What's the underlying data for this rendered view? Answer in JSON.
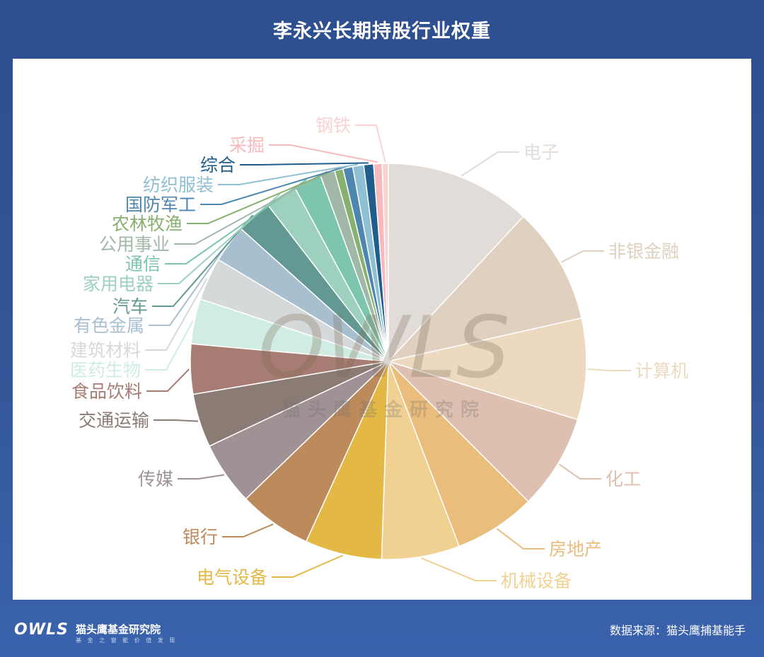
{
  "title": "李永兴长期持股行业权重",
  "source": "数据来源：猫头鹰捕基能手",
  "watermark": {
    "logo": "OWLS",
    "name": "猫头鹰基金研究院"
  },
  "footer": {
    "logo": "OWLS",
    "name": "猫头鹰基金研究院",
    "slogan": "基 金 之 窗 能 价 值 发 现"
  },
  "chart_data": {
    "type": "pie",
    "slices": [
      {
        "label": "电子",
        "value": 12.0,
        "color": "#e2dcd8"
      },
      {
        "label": "非银金融",
        "value": 9.6,
        "color": "#dfd0c0"
      },
      {
        "label": "计算机",
        "value": 8.3,
        "color": "#ecd9bf"
      },
      {
        "label": "化工",
        "value": 7.8,
        "color": "#ddc0b0"
      },
      {
        "label": "房地产",
        "value": 6.7,
        "color": "#ebbd7c"
      },
      {
        "label": "机械设备",
        "value": 6.4,
        "color": "#f1d192"
      },
      {
        "label": "电气设备",
        "value": 6.3,
        "color": "#e3b845"
      },
      {
        "label": "银行",
        "value": 6.0,
        "color": "#bd8a5c"
      },
      {
        "label": "传媒",
        "value": 5.2,
        "color": "#a09195"
      },
      {
        "label": "交通运输",
        "value": 4.4,
        "color": "#8a7c75"
      },
      {
        "label": "食品饮料",
        "value": 4.1,
        "color": "#a77c72"
      },
      {
        "label": "医药生物",
        "value": 3.7,
        "color": "#d0ece3"
      },
      {
        "label": "建筑材料",
        "value": 3.5,
        "color": "#d6d9da"
      },
      {
        "label": "有色金属",
        "value": 3.1,
        "color": "#a8bfd0"
      },
      {
        "label": "汽车",
        "value": 2.9,
        "color": "#649993"
      },
      {
        "label": "家用电器",
        "value": 2.6,
        "color": "#9dd1bd"
      },
      {
        "label": "通信",
        "value": 2.3,
        "color": "#7dc5ad"
      },
      {
        "label": "公用事业",
        "value": 1.2,
        "color": "#a1b8a8"
      },
      {
        "label": "农林牧渔",
        "value": 0.7,
        "color": "#88b06e"
      },
      {
        "label": "国防军工",
        "value": 0.8,
        "color": "#4d86ae"
      },
      {
        "label": "纺织服装",
        "value": 0.9,
        "color": "#8fbfd3"
      },
      {
        "label": "综合",
        "value": 0.8,
        "color": "#1f5d8c"
      },
      {
        "label": "采掘",
        "value": 0.7,
        "color": "#f7b9bc"
      },
      {
        "label": "钢铁",
        "value": 0.5,
        "color": "#fbd2d2"
      }
    ]
  }
}
